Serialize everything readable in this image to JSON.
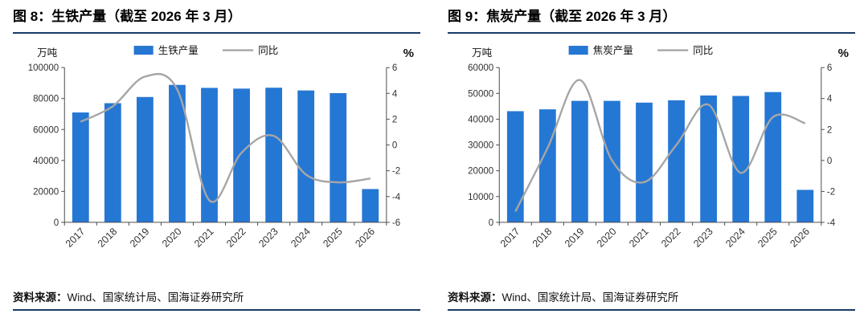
{
  "chart_data": [
    {
      "type": "bar+line",
      "title": "图 8：生铁产量（截至 2026 年 3 月）",
      "unit_left": "万吨",
      "unit_right": "%",
      "source_label": "资料来源：",
      "source_text": "Wind、国家统计局、国海证券研究所",
      "categories": [
        "2017",
        "2018",
        "2019",
        "2020",
        "2021",
        "2022",
        "2023",
        "2024",
        "2025",
        "2026"
      ],
      "series": [
        {
          "name": "生铁产量",
          "type": "bar",
          "axis": "left",
          "values": [
            71000,
            77000,
            81000,
            88800,
            86900,
            86400,
            87000,
            85200,
            83500,
            21500
          ]
        },
        {
          "name": "同比",
          "type": "line",
          "axis": "right",
          "values": [
            1.8,
            3.0,
            5.3,
            4.3,
            -4.3,
            -0.6,
            0.7,
            -2.3,
            -2.9,
            -2.6
          ]
        }
      ],
      "ylim_left": [
        0,
        100000
      ],
      "ytick_left": 20000,
      "ylim_right": [
        -6,
        6
      ],
      "ytick_right": 2,
      "bar_color": "#2577D4",
      "line_color": "#A6A6A6",
      "legend_position": "top",
      "grid": false
    },
    {
      "type": "bar+line",
      "title": "图 9：焦炭产量（截至 2026 年 3 月）",
      "unit_left": "万吨",
      "unit_right": "%",
      "source_label": "资料来源：",
      "source_text": "Wind、国家统计局、国海证券研究所",
      "categories": [
        "2017",
        "2018",
        "2019",
        "2020",
        "2021",
        "2022",
        "2023",
        "2024",
        "2025",
        "2026"
      ],
      "series": [
        {
          "name": "焦炭产量",
          "type": "bar",
          "axis": "left",
          "values": [
            43100,
            43800,
            47100,
            47100,
            46400,
            47300,
            49200,
            49000,
            50500,
            12600
          ]
        },
        {
          "name": "同比",
          "type": "line",
          "axis": "right",
          "values": [
            -3.3,
            0.8,
            5.2,
            0.0,
            -1.4,
            1.0,
            3.6,
            -0.8,
            2.8,
            2.4
          ]
        }
      ],
      "ylim_left": [
        0,
        60000
      ],
      "ytick_left": 10000,
      "ylim_right": [
        -4,
        6
      ],
      "ytick_right": 2,
      "bar_color": "#2577D4",
      "line_color": "#A6A6A6",
      "legend_position": "top",
      "grid": false
    }
  ]
}
